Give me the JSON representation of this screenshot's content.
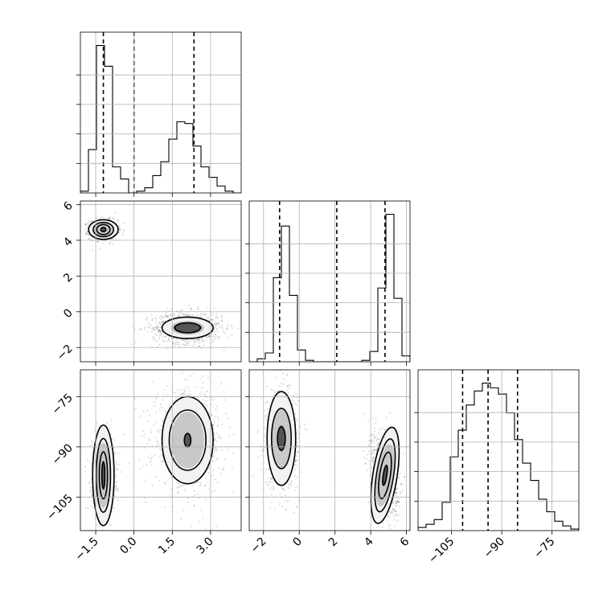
{
  "chart_data": {
    "type": "corner",
    "grid": true,
    "axes": {
      "p0": {
        "lim": [
          -2.1,
          4.2
        ],
        "ticks": [
          -1.5,
          0.0,
          1.5,
          3.0
        ],
        "ticklabels": [
          "−1.5",
          "0.0",
          "1.5",
          "3.0"
        ]
      },
      "p1": {
        "lim": [
          -2.8,
          6.2
        ],
        "ticks": [
          -2,
          0,
          2,
          4,
          6
        ],
        "ticklabels": [
          "−2",
          "0",
          "2",
          "4",
          "6"
        ]
      },
      "p2": {
        "lim": [
          -115,
          -67
        ],
        "ticks": [
          -105,
          -90,
          -75
        ],
        "ticklabels": [
          "−105",
          "−90",
          "−75"
        ]
      }
    },
    "histograms": {
      "p0": {
        "edges": [
          -2.1,
          -1.785,
          -1.47,
          -1.155,
          -0.84,
          -0.525,
          -0.21,
          0.105,
          0.42,
          0.735,
          1.05,
          1.365,
          1.68,
          1.995,
          2.31,
          2.625,
          2.94,
          3.255,
          3.57,
          3.885,
          4.2
        ],
        "counts": [
          0.01,
          0.25,
          0.85,
          0.73,
          0.15,
          0.08,
          0.0,
          0.01,
          0.03,
          0.1,
          0.18,
          0.31,
          0.41,
          0.4,
          0.27,
          0.15,
          0.09,
          0.04,
          0.01,
          0.0
        ],
        "quantiles": [
          -1.2,
          0.0,
          2.35
        ]
      },
      "p1": {
        "edges": [
          -2.8,
          -2.35,
          -1.9,
          -1.45,
          -1.0,
          -0.55,
          -0.1,
          0.35,
          0.8,
          1.25,
          1.7,
          2.15,
          2.6,
          3.05,
          3.5,
          3.95,
          4.4,
          4.85,
          5.3,
          5.75,
          6.2
        ],
        "counts": [
          0.0,
          0.02,
          0.06,
          0.57,
          0.92,
          0.45,
          0.08,
          0.01,
          0.0,
          0.0,
          0.0,
          0.0,
          0.0,
          0.0,
          0.01,
          0.07,
          0.5,
          1.0,
          0.43,
          0.04
        ],
        "quantiles": [
          -1.1,
          2.1,
          4.8
        ]
      },
      "p2": {
        "edges": [
          -115,
          -112.6,
          -110.2,
          -107.8,
          -105.4,
          -103.0,
          -100.6,
          -98.2,
          -95.8,
          -93.4,
          -91.0,
          -88.6,
          -86.2,
          -83.8,
          -81.4,
          -79.0,
          -76.6,
          -74.2,
          -71.8,
          -69.4,
          -67.0
        ],
        "counts": [
          0.02,
          0.04,
          0.07,
          0.18,
          0.47,
          0.64,
          0.8,
          0.89,
          0.94,
          0.91,
          0.87,
          0.75,
          0.58,
          0.43,
          0.32,
          0.2,
          0.12,
          0.06,
          0.03,
          0.01
        ],
        "quantiles": [
          -101.7,
          -94.1,
          -85.3
        ]
      }
    },
    "scatter_panels": [
      {
        "x": "p0",
        "y": "p1",
        "clusters": [
          {
            "mean": [
              -1.2,
              4.6
            ],
            "sd": [
              0.22,
              0.22
            ],
            "contours": [
              [
                0.1,
                0.12
              ],
              [
                0.26,
                0.28
              ],
              [
                0.4,
                0.4
              ],
              [
                0.58,
                0.55
              ]
            ]
          },
          {
            "mean": [
              2.1,
              -0.9
            ],
            "sd": [
              0.55,
              0.35
            ],
            "contours": [
              [
                0.5,
                0.28
              ],
              [
                1.0,
                0.6
              ]
            ]
          }
        ]
      },
      {
        "x": "p0",
        "y": "p2",
        "clusters": [
          {
            "mean": [
              -1.2,
              -98.5
            ],
            "sd": [
              0.18,
              4.5
            ],
            "contours": [
              [
                0.06,
                4.0
              ],
              [
                0.16,
                7.0
              ],
              [
                0.28,
                11.0
              ],
              [
                0.42,
                15.0
              ]
            ]
          },
          {
            "mean": [
              2.1,
              -88.0
            ],
            "sd": [
              0.55,
              6.0
            ],
            "contours": [
              [
                0.13,
                2.0
              ],
              [
                0.72,
                9.0
              ],
              [
                1.0,
                13.0
              ]
            ]
          }
        ]
      },
      {
        "x": "p1",
        "y": "p2",
        "clusters": [
          {
            "mean": [
              -1.0,
              -87.5
            ],
            "sd": [
              0.35,
              6.0
            ],
            "contours": [
              [
                0.22,
                3.5
              ],
              [
                0.55,
                9.0
              ],
              [
                0.8,
                14.0
              ]
            ]
          },
          {
            "mean": [
              4.8,
              -98.5
            ],
            "sd": [
              0.3,
              4.8
            ],
            "contours": [
              [
                0.1,
                3.0
              ],
              [
                0.3,
                7.0
              ],
              [
                0.48,
                11.0
              ],
              [
                0.68,
                14.5
              ]
            ],
            "tilt": -0.35
          }
        ]
      }
    ]
  }
}
